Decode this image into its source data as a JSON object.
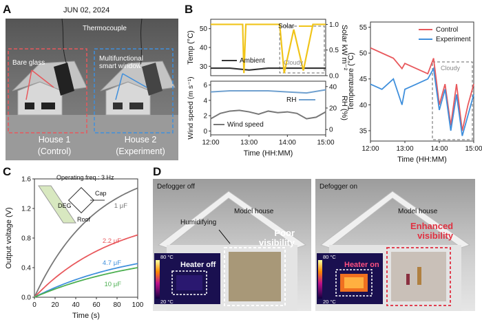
{
  "panels": {
    "a": "A",
    "b": "B",
    "c": "C",
    "d": "D"
  },
  "panelA": {
    "date": "JUN 02, 2024",
    "thermocouple": "Thermocouple",
    "bare_glass": "Bare glass",
    "smart_window": "Multifunctional\nsmart window",
    "house1_name": "House 1",
    "house1_role": "(Control)",
    "house2_name": "House 2",
    "house2_role": "(Experiment)",
    "colors": {
      "control": "#e8585c",
      "experiment": "#3f8fdc"
    }
  },
  "panelB": {
    "xlabel": "Time (HH:MM)",
    "xticks": [
      "12:00",
      "13:00",
      "14:00",
      "15:00"
    ],
    "top": {
      "ylabel_left": "Temp (°C)",
      "ylabel_right": "Solar kW m⁻²",
      "yticks_left": [
        "30",
        "40",
        "50"
      ],
      "yticks_right": [
        "0.0",
        "0.5",
        "1.0"
      ],
      "solar_label": "Solar",
      "ambient_label": "Ambient",
      "cloudy_label": "Cloudy"
    },
    "bottom": {
      "ylabel_left": "Wind speed (m s⁻¹)",
      "ylabel_right": "RH (%)",
      "yticks_left": [
        "0",
        "2",
        "4",
        "6"
      ],
      "yticks_right": [
        "0",
        "20",
        "40"
      ],
      "rh_label": "RH",
      "wind_label": "Wind speed"
    },
    "right": {
      "ylabel": "Temperature (°C)",
      "yticks": [
        "35",
        "40",
        "45",
        "50",
        "55"
      ],
      "legend": [
        "Control",
        "Experiment"
      ],
      "cloudy_label": "Cloudy"
    }
  },
  "panelC": {
    "title": "Operating freq.: 3 Hz",
    "xlabel": "Time (s)",
    "ylabel": "Output voltage (V)",
    "xticks": [
      "0",
      "20",
      "40",
      "60",
      "80",
      "100"
    ],
    "yticks": [
      "0.0",
      "0.4",
      "0.8",
      "1.2",
      "1.6"
    ],
    "inset": {
      "deg": "DEG",
      "cap": "Cap",
      "roof": "Roof"
    }
  },
  "panelD": {
    "left": {
      "defogger": "Defogger off",
      "house": "Model house",
      "humidifying": "Humidifying",
      "visibility": "Poor\nvisibility",
      "heater": "Heater off",
      "scale_top": "80 °C",
      "scale_bottom": "20 °C"
    },
    "right": {
      "defogger": "Defogger on",
      "house": "Model house",
      "visibility": "Enhanced\nvisibility",
      "heater": "Heater on",
      "scale_top": "80 °C",
      "scale_bottom": "20 °C"
    }
  },
  "chart_data": [
    {
      "type": "line",
      "title": "",
      "xlabel": "Time (HH:MM)",
      "ylabel": "Temp (°C)",
      "ylabel_right": "Solar kW m⁻²",
      "xlim": [
        "12:00",
        "15:00"
      ],
      "ylim": [
        25,
        55
      ],
      "ylim_right": [
        0,
        1.1
      ],
      "series": [
        {
          "name": "Ambient",
          "axis": "left",
          "color": "#333333",
          "x": [
            "12:00",
            "12:30",
            "13:00",
            "13:30",
            "14:00",
            "14:30",
            "15:00"
          ],
          "values": [
            29,
            29,
            28,
            29,
            29,
            29,
            29
          ]
        },
        {
          "name": "Solar",
          "axis": "right",
          "color": "#f0c419",
          "x": [
            "12:00",
            "12:30",
            "12:50",
            "12:52",
            "12:55",
            "13:30",
            "13:48",
            "13:55",
            "14:10",
            "14:25",
            "14:40",
            "15:00"
          ],
          "values": [
            1.0,
            1.0,
            1.0,
            0.05,
            1.0,
            1.0,
            1.0,
            0.05,
            0.9,
            0.1,
            1.0,
            1.0
          ]
        }
      ],
      "annotations": [
        "Cloudy"
      ]
    },
    {
      "type": "line",
      "xlabel": "Time (HH:MM)",
      "ylabel": "Wind speed (m s⁻¹)",
      "ylabel_right": "RH (%)",
      "xlim": [
        "12:00",
        "15:00"
      ],
      "ylim": [
        -0.5,
        6.5
      ],
      "ylim_right": [
        -5,
        45
      ],
      "series": [
        {
          "name": "RH",
          "axis": "right",
          "color": "#6fa0cf",
          "x": [
            "12:00",
            "12:30",
            "13:00",
            "13:30",
            "14:00",
            "14:30",
            "15:00"
          ],
          "values": [
            35,
            36,
            36,
            36,
            35,
            34,
            37
          ]
        },
        {
          "name": "Wind speed",
          "axis": "left",
          "color": "#777777",
          "x": [
            "12:00",
            "12:15",
            "12:30",
            "12:45",
            "13:00",
            "13:15",
            "13:30",
            "13:45",
            "14:00",
            "14:15",
            "14:30",
            "14:45",
            "15:00"
          ],
          "values": [
            1.6,
            2.3,
            2.6,
            2.7,
            2.5,
            2.2,
            2.6,
            2.4,
            2.5,
            2.3,
            1.6,
            1.8,
            2.5
          ]
        }
      ]
    },
    {
      "type": "line",
      "xlabel": "Time (HH:MM)",
      "ylabel": "Temperature (°C)",
      "xlim": [
        "12:00",
        "15:00"
      ],
      "ylim": [
        33,
        56
      ],
      "series": [
        {
          "name": "Control",
          "color": "#e8585c",
          "x": [
            "12:00",
            "12:20",
            "12:40",
            "12:55",
            "13:00",
            "13:20",
            "13:40",
            "13:50",
            "14:00",
            "14:10",
            "14:20",
            "14:30",
            "14:40",
            "14:50",
            "15:00"
          ],
          "values": [
            51,
            50,
            49,
            47,
            48,
            47,
            46,
            49,
            40,
            44,
            36,
            44,
            35,
            40,
            44
          ]
        },
        {
          "name": "Experiment",
          "color": "#3f8fdc",
          "x": [
            "12:00",
            "12:20",
            "12:40",
            "12:55",
            "13:00",
            "13:20",
            "13:40",
            "13:50",
            "14:00",
            "14:10",
            "14:20",
            "14:30",
            "14:40",
            "14:50",
            "15:00"
          ],
          "values": [
            44,
            43,
            45,
            40,
            43,
            44,
            45,
            47,
            39,
            43,
            35,
            42,
            34,
            38,
            42
          ]
        }
      ],
      "annotations": [
        "Cloudy"
      ]
    },
    {
      "type": "line",
      "title": "Operating freq.: 3 Hz",
      "xlabel": "Time (s)",
      "ylabel": "Output voltage (V)",
      "xlim": [
        0,
        100
      ],
      "ylim": [
        0,
        1.6
      ],
      "series": [
        {
          "name": "1 μF",
          "color": "#777777",
          "tau": 60,
          "vmax": 1.82
        },
        {
          "name": "2.2 μF",
          "color": "#e8585c",
          "tau": 80,
          "vmax": 1.18
        },
        {
          "name": "4.7 μF",
          "color": "#3f8fdc",
          "tau": 100,
          "vmax": 0.72
        },
        {
          "name": "10 μF",
          "color": "#4caf50",
          "tau": 110,
          "vmax": 0.67
        }
      ]
    }
  ]
}
